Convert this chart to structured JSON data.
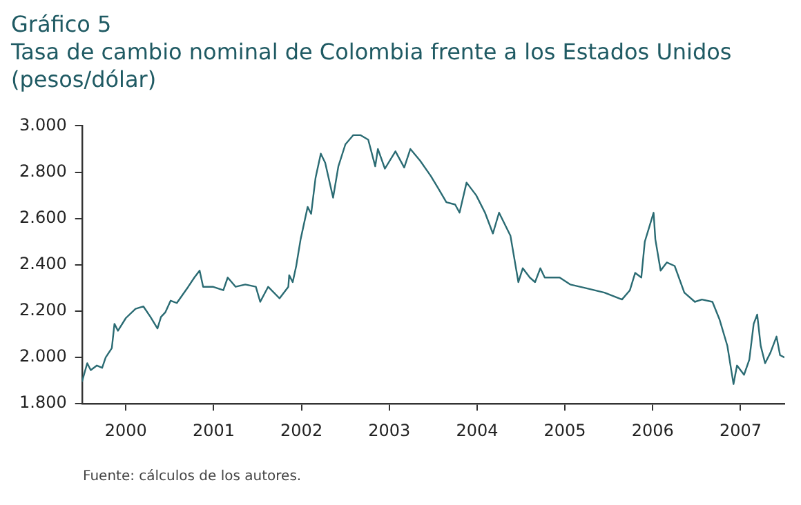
{
  "chart_data": {
    "type": "line",
    "title": "Gráfico 5",
    "subtitle": "Tasa de cambio nominal de Colombia frente a los Estados Unidos",
    "ylabel": "(pesos/dólar)",
    "annotations": [
      "Fuente: cálculos de los autores."
    ],
    "xlim": [
      2000,
      2008
    ],
    "xticks": [
      {
        "value": 2000.5,
        "label": "2000"
      },
      {
        "value": 2001.5,
        "label": "2001"
      },
      {
        "value": 2002.5,
        "label": "2002"
      },
      {
        "value": 2003.5,
        "label": "2003"
      },
      {
        "value": 2004.5,
        "label": "2004"
      },
      {
        "value": 2005.5,
        "label": "2005"
      },
      {
        "value": 2006.5,
        "label": "2006"
      },
      {
        "value": 2007.5,
        "label": "2007"
      }
    ],
    "ylim": [
      1800,
      3000
    ],
    "yticks": [
      {
        "value": 1800,
        "label": "1.800"
      },
      {
        "value": 2000,
        "label": "2.000"
      },
      {
        "value": 2200,
        "label": "2.200"
      },
      {
        "value": 2400,
        "label": "2.400"
      },
      {
        "value": 2600,
        "label": "2.600"
      },
      {
        "value": 2800,
        "label": "2.800"
      },
      {
        "value": 3000,
        "label": "3.000"
      }
    ],
    "marker": "none",
    "line_style": "solid",
    "series": [
      {
        "color": "#2a6b73",
        "x": [
          2000,
          2000.06,
          2000.1,
          2000.17,
          2000.23,
          2000.27,
          2000.34,
          2000.37,
          2000.41,
          2000.5,
          2000.61,
          2000.7,
          2000.78,
          2000.86,
          2000.9,
          2000.95,
          2001.01,
          2001.08,
          2001.21,
          2001.28,
          2001.34,
          2001.38,
          2001.49,
          2001.61,
          2001.66,
          2001.75,
          2001.86,
          2001.98,
          2002.03,
          2002.12,
          2002.25,
          2002.35,
          2002.36,
          2002.4,
          2002.44,
          2002.49,
          2002.57,
          2002.61,
          2002.66,
          2002.72,
          2002.77,
          2002.86,
          2002.92,
          2003.0,
          2003.09,
          2003.17,
          2003.26,
          2003.34,
          2003.37,
          2003.45,
          2003.57,
          2003.67,
          2003.74,
          2003.85,
          2003.97,
          2004.05,
          2004.15,
          2004.25,
          2004.3,
          2004.38,
          2004.49,
          2004.59,
          2004.68,
          2004.75,
          2004.88,
          2004.97,
          2005.02,
          2005.1,
          2005.16,
          2005.22,
          2005.27,
          2005.44,
          2005.56,
          2005.73,
          2005.95,
          2006.15,
          2006.24,
          2006.3,
          2006.37,
          2006.41,
          2006.47,
          2006.51,
          2006.53,
          2006.59,
          2006.66,
          2006.75,
          2006.86,
          2006.98,
          2007.06,
          2007.18,
          2007.26,
          2007.35,
          2007.42,
          2007.46,
          2007.54,
          2007.6,
          2007.65,
          2007.69,
          2007.73,
          2007.78,
          2007.84,
          2007.91,
          2007.95,
          2008.0
        ],
        "values": [
          1895,
          1975,
          1945,
          1965,
          1955,
          2000,
          2040,
          2145,
          2115,
          2170,
          2210,
          2220,
          2175,
          2125,
          2175,
          2195,
          2245,
          2235,
          2305,
          2345,
          2375,
          2305,
          2305,
          2290,
          2345,
          2305,
          2315,
          2305,
          2240,
          2305,
          2255,
          2305,
          2355,
          2325,
          2395,
          2510,
          2650,
          2620,
          2775,
          2880,
          2840,
          2690,
          2825,
          2920,
          2960,
          2960,
          2940,
          2825,
          2900,
          2815,
          2890,
          2820,
          2900,
          2850,
          2785,
          2735,
          2670,
          2660,
          2625,
          2755,
          2700,
          2625,
          2535,
          2625,
          2525,
          2325,
          2385,
          2345,
          2325,
          2385,
          2345,
          2345,
          2315,
          2300,
          2280,
          2250,
          2290,
          2365,
          2345,
          2500,
          2575,
          2625,
          2510,
          2375,
          2410,
          2395,
          2280,
          2240,
          2250,
          2240,
          2165,
          2050,
          1885,
          1965,
          1925,
          1990,
          2145,
          2185,
          2050,
          1975,
          2020,
          2090,
          2010,
          2000
        ]
      }
    ]
  }
}
